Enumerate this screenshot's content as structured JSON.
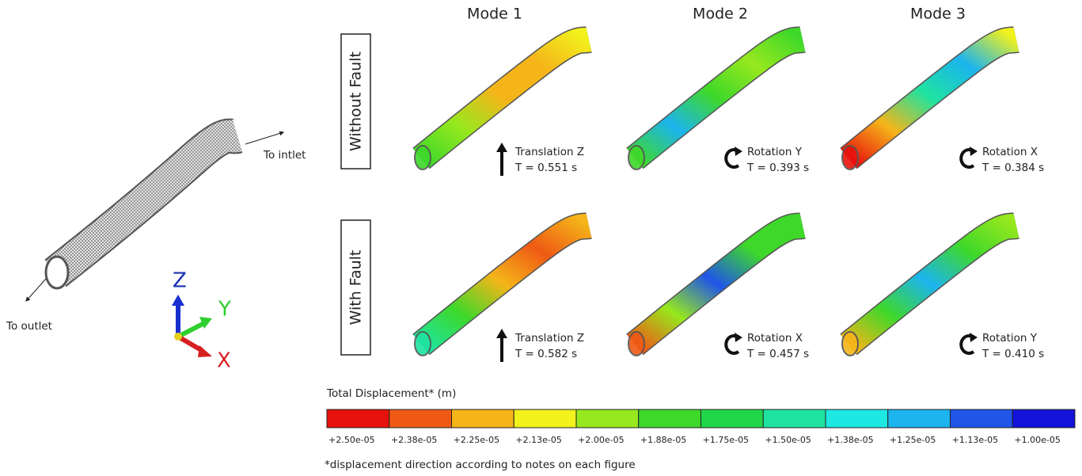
{
  "overview": {
    "inlet_label": "To intlet",
    "outlet_label": "To outlet",
    "axes": [
      "Z",
      "Y",
      "X"
    ]
  },
  "columns": [
    "Mode 1",
    "Mode 2",
    "Mode 3"
  ],
  "rows": [
    {
      "label": "Without Fault",
      "panels": [
        {
          "motion": "Translation Z",
          "period": "T = 0.551 s"
        },
        {
          "motion": "Rotation Y",
          "period": "T = 0.393 s"
        },
        {
          "motion": "Rotation X",
          "period": "T = 0.384 s"
        }
      ]
    },
    {
      "label": "With Fault",
      "panels": [
        {
          "motion": "Translation Z",
          "period": "T = 0.582 s"
        },
        {
          "motion": "Rotation X",
          "period": "T = 0.457 s"
        },
        {
          "motion": "Rotation Y",
          "period": "T = 0.410 s"
        }
      ]
    }
  ],
  "legend": {
    "title": "Total Displacement*  (m)",
    "items": [
      {
        "label": "+2.50e-05",
        "color": "#e8120c"
      },
      {
        "label": "+2.38e-05",
        "color": "#ee5a14"
      },
      {
        "label": "+2.25e-05",
        "color": "#f5b519"
      },
      {
        "label": "+2.13e-05",
        "color": "#f2f21c"
      },
      {
        "label": "+2.00e-05",
        "color": "#97e81e"
      },
      {
        "label": "+1.88e-05",
        "color": "#3ed82a"
      },
      {
        "label": "+1.75e-05",
        "color": "#22d64a"
      },
      {
        "label": "+1.50e-05",
        "color": "#1ee3a0"
      },
      {
        "label": "+1.38e-05",
        "color": "#1de8e2"
      },
      {
        "label": "+1.25e-05",
        "color": "#1cb4ee"
      },
      {
        "label": "+1.13e-05",
        "color": "#1f55e8"
      },
      {
        "label": "+1.00e-05",
        "color": "#1313d9"
      }
    ]
  },
  "footnote": "*displacement direction according to notes on each figure"
}
